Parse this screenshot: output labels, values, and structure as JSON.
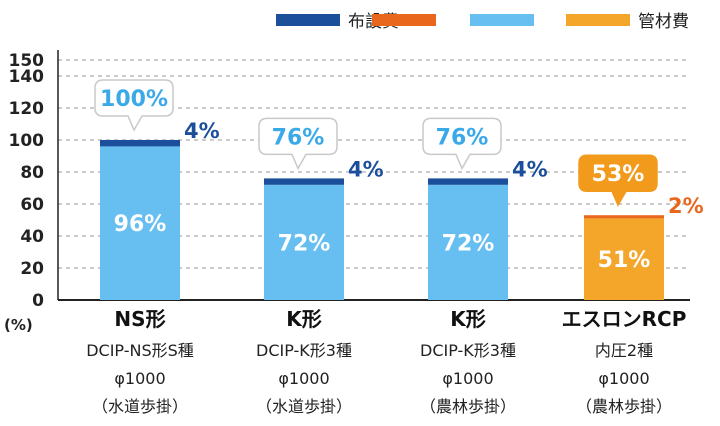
{
  "chart_data": {
    "type": "bar",
    "stacked": true,
    "ylabel": "(%)",
    "ylim": [
      0,
      150
    ],
    "yticks": [
      0,
      20,
      40,
      60,
      80,
      100,
      120,
      140,
      150
    ],
    "grid": true,
    "legend_position": "top-right",
    "legend": [
      {
        "name": "布設費",
        "color": "#1b4f9c"
      },
      {
        "name": "",
        "color": "#e9671d"
      },
      {
        "name": "",
        "color": "#66bff0"
      },
      {
        "name": "管材費",
        "color": "#f4a62a"
      }
    ],
    "categories": [
      {
        "name": "NS形",
        "lines": [
          "DCIP-NS形S種",
          "φ1000",
          "（水道歩掛）"
        ]
      },
      {
        "name": "K形",
        "lines": [
          "DCIP-K形3種",
          "φ1000",
          "（水道歩掛）"
        ]
      },
      {
        "name": "K形",
        "lines": [
          "DCIP-K形3種",
          "φ1000",
          "（農林歩掛）"
        ]
      },
      {
        "name": "エスロンRCP",
        "lines": [
          "内圧2種",
          "φ1000",
          "（農林歩掛）"
        ]
      }
    ],
    "series": [
      {
        "name": "管材費",
        "values": [
          96,
          72,
          72,
          51
        ],
        "colors": [
          "#66bff0",
          "#66bff0",
          "#66bff0",
          "#f4a62a"
        ]
      },
      {
        "name": "布設費",
        "values": [
          4,
          4,
          4,
          2
        ],
        "colors": [
          "#1b4f9c",
          "#1b4f9c",
          "#1b4f9c",
          "#e9671d"
        ]
      }
    ],
    "bar_value_labels": [
      "96%",
      "72%",
      "72%",
      "51%"
    ],
    "cap_value_labels": [
      "4%",
      "4%",
      "4%",
      "2%"
    ],
    "total_labels": [
      "100%",
      "76%",
      "76%",
      "53%"
    ],
    "accent_colors": {
      "blue_text": "#1b4f9c",
      "orange_text": "#e9671d",
      "bubble_text_blue": "#3aa9e8",
      "bubble_fill_orange": "#f29a1b"
    }
  }
}
